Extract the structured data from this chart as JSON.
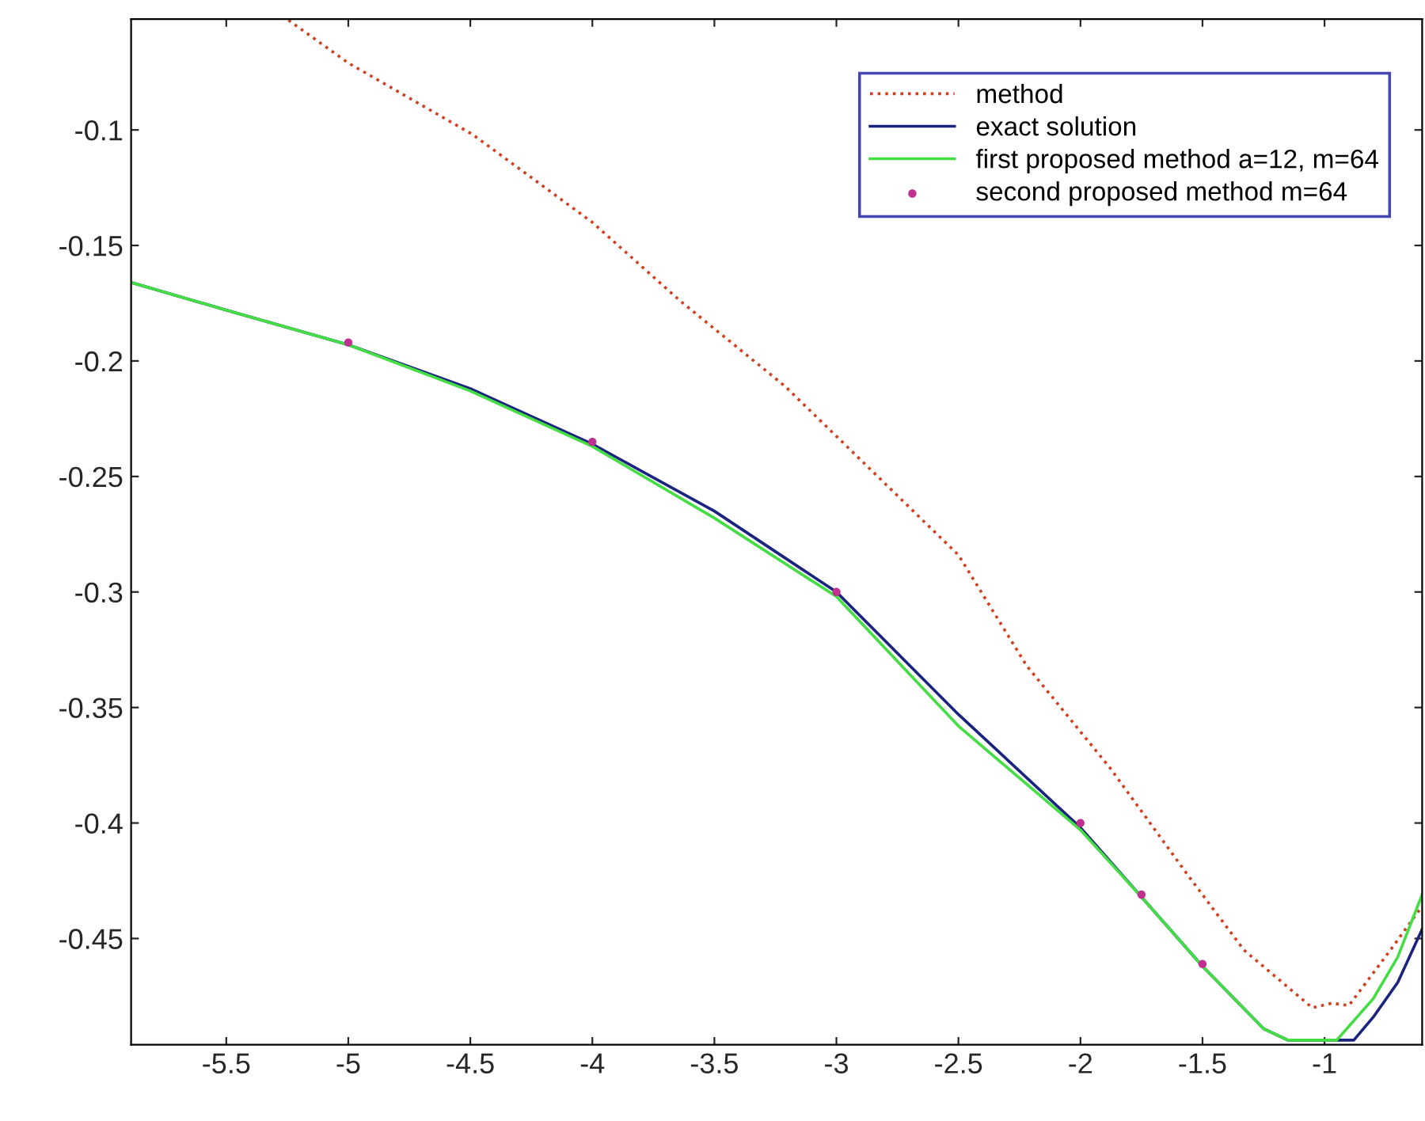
{
  "chart_data": {
    "type": "line",
    "xlim": [
      -5.89,
      -0.6
    ],
    "ylim": [
      -0.496,
      -0.052
    ],
    "xticks": [
      -5.5,
      -5,
      -4.5,
      -4,
      -3.5,
      -3,
      -2.5,
      -2,
      -1.5,
      -1
    ],
    "yticks": [
      -0.45,
      -0.4,
      -0.35,
      -0.3,
      -0.25,
      -0.2,
      -0.15,
      -0.1
    ],
    "grid": false,
    "legend": "top right",
    "series": [
      {
        "name": "method",
        "color": "#d04020",
        "line_style": "dotted",
        "x": [
          -5.245,
          -5,
          -4.49,
          -4,
          -3.64,
          -3.21,
          -2.5,
          -2.22,
          -1.88,
          -1.55,
          -1.33,
          -1.05,
          -0.97,
          -0.9,
          -0.73,
          -0.6
        ],
        "values": [
          -0.0525,
          -0.071,
          -0.102,
          -0.14,
          -0.174,
          -0.211,
          -0.284,
          -0.332,
          -0.376,
          -0.424,
          -0.455,
          -0.48,
          -0.478,
          -0.479,
          -0.455,
          -0.436
        ]
      },
      {
        "name": "exact solution",
        "color": "#1a237e",
        "line_style": "solid",
        "x": [
          -5.89,
          -5.5,
          -5,
          -4.5,
          -4,
          -3.5,
          -3,
          -2.5,
          -2,
          -1.75,
          -1.5,
          -1.25,
          -1.15,
          -0.88,
          -0.8,
          -0.7,
          -0.6
        ],
        "values": [
          -0.166,
          -0.178,
          -0.193,
          -0.212,
          -0.236,
          -0.265,
          -0.3,
          -0.353,
          -0.402,
          -0.432,
          -0.462,
          -0.489,
          -0.494,
          -0.494,
          -0.484,
          -0.469,
          -0.446
        ]
      },
      {
        "name": "first proposed method a=12, m=64",
        "color": "#44dd44",
        "line_style": "solid",
        "x": [
          -5.89,
          -5.5,
          -5,
          -4.5,
          -4,
          -3.5,
          -3,
          -2.5,
          -2,
          -1.75,
          -1.5,
          -1.25,
          -1.15,
          -0.95,
          -0.8,
          -0.7,
          -0.6
        ],
        "values": [
          -0.166,
          -0.178,
          -0.193,
          -0.213,
          -0.237,
          -0.268,
          -0.302,
          -0.358,
          -0.403,
          -0.432,
          -0.462,
          -0.489,
          -0.494,
          -0.494,
          -0.476,
          -0.458,
          -0.431
        ]
      },
      {
        "name": "second proposed method m=64",
        "color": "#c03090",
        "type": "scatter",
        "marker": "circle",
        "x": [
          -5,
          -4,
          -3,
          -2,
          -1.75,
          -1.5
        ],
        "values": [
          -0.192,
          -0.235,
          -0.3,
          -0.4,
          -0.431,
          -0.461
        ]
      }
    ]
  }
}
